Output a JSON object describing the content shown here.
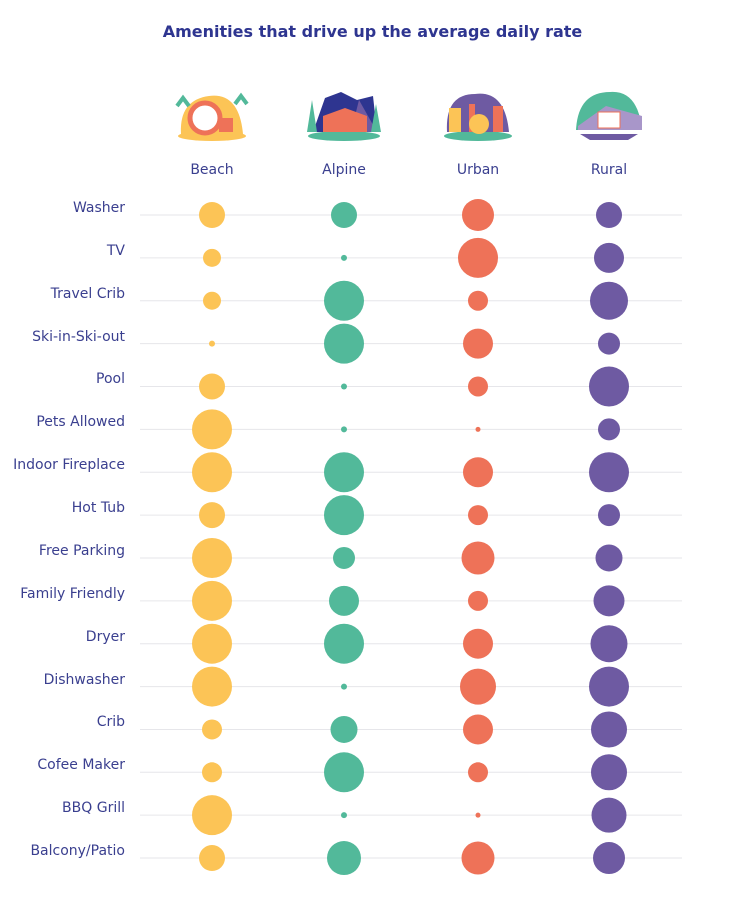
{
  "chart_data": {
    "type": "bubble",
    "title": "Amenities that drive up the average daily rate",
    "columns": [
      "Beach",
      "Alpine",
      "Urban",
      "Rural"
    ],
    "colors": {
      "Beach": "#fcc456",
      "Alpine": "#52b99a",
      "Urban": "#ee7258",
      "Rural": "#6e5aa2"
    },
    "rows": [
      "Washer",
      "TV",
      "Travel Crib",
      "Ski-in-Ski-out",
      "Pool",
      "Pets Allowed",
      "Indoor Fireplace",
      "Hot Tub",
      "Free Parking",
      "Family Friendly",
      "Dryer",
      "Dishwasher",
      "Crib",
      "Cofee Maker",
      "BBQ Grill",
      "Balcony/Patio"
    ],
    "values": [
      [
        26,
        26,
        32,
        26
      ],
      [
        18,
        6,
        40,
        30
      ],
      [
        18,
        40,
        20,
        38
      ],
      [
        6,
        40,
        30,
        22
      ],
      [
        26,
        6,
        20,
        40
      ],
      [
        40,
        6,
        5,
        22
      ],
      [
        40,
        40,
        30,
        40
      ],
      [
        26,
        40,
        20,
        22
      ],
      [
        40,
        22,
        33,
        27
      ],
      [
        40,
        30,
        20,
        31
      ],
      [
        40,
        40,
        30,
        37
      ],
      [
        40,
        6,
        36,
        40
      ],
      [
        20,
        27,
        30,
        36
      ],
      [
        20,
        40,
        20,
        36
      ],
      [
        40,
        6,
        5,
        35
      ],
      [
        26,
        34,
        33,
        32
      ]
    ],
    "value_meaning": "relative bubble size (larger = stronger effect on average daily rate)",
    "grid": true,
    "legend": "none"
  }
}
